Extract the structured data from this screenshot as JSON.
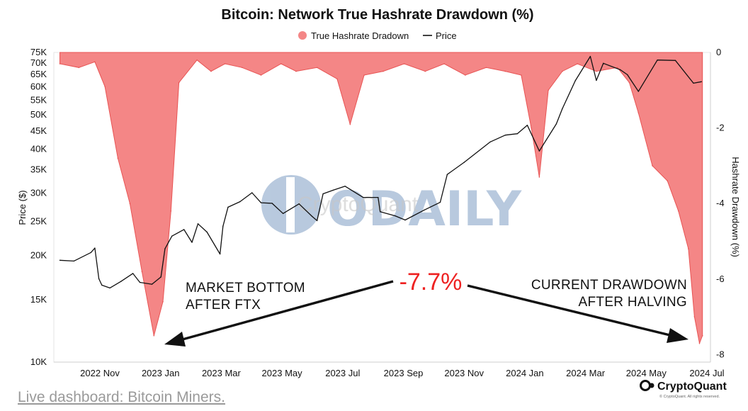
{
  "chart_data": {
    "type": "area",
    "title": "Bitcoin: Network True Hashrate Drawdown (%)",
    "legend": {
      "placement": "top-center",
      "entries": [
        "True Hashrate Dradown",
        "Price"
      ]
    },
    "colors": {
      "drawdown_fill": "#f48686",
      "drawdown_line": "#e85454",
      "price_line": "#111111",
      "callout": "#ee2222"
    },
    "x_axis": {
      "ticks": [
        "2022 Nov",
        "2023 Jan",
        "2023 Mar",
        "2023 May",
        "2023 Jul",
        "2023 Sep",
        "2023 Nov",
        "2024 Jan",
        "2024 Mar",
        "2024 May",
        "2024 Jul"
      ]
    },
    "y_left": {
      "label": "Price ($)",
      "scale": "log",
      "range": [
        10000,
        75000
      ],
      "ticks": [
        10000,
        15000,
        20000,
        25000,
        30000,
        35000,
        40000,
        45000,
        50000,
        55000,
        60000,
        65000,
        70000,
        75000
      ],
      "tick_labels": [
        "10K",
        "15K",
        "20K",
        "25K",
        "30K",
        "35K",
        "40K",
        "45K",
        "50K",
        "55K",
        "60K",
        "65K",
        "70K",
        "75K"
      ]
    },
    "y_right": {
      "label": "Hashrate Drawdown (%)",
      "range": [
        -8.2,
        0
      ],
      "ticks": [
        0,
        -2,
        -4,
        -6,
        -8
      ],
      "tick_labels": [
        "0",
        "-2",
        "-4",
        "-6",
        "-8"
      ]
    },
    "series": [
      {
        "name": "Price",
        "axis": "left",
        "points": [
          [
            "2022-10-01",
            19400
          ],
          [
            "2022-10-15",
            19300
          ],
          [
            "2022-11-01",
            20400
          ],
          [
            "2022-11-05",
            21000
          ],
          [
            "2022-11-09",
            17200
          ],
          [
            "2022-11-12",
            16500
          ],
          [
            "2022-11-20",
            16200
          ],
          [
            "2022-12-01",
            16900
          ],
          [
            "2022-12-13",
            17800
          ],
          [
            "2022-12-20",
            16800
          ],
          [
            "2023-01-01",
            16600
          ],
          [
            "2023-01-10",
            17400
          ],
          [
            "2023-01-14",
            20900
          ],
          [
            "2023-01-21",
            22700
          ],
          [
            "2023-02-02",
            23700
          ],
          [
            "2023-02-10",
            21800
          ],
          [
            "2023-02-16",
            24600
          ],
          [
            "2023-02-25",
            23300
          ],
          [
            "2023-03-10",
            20200
          ],
          [
            "2023-03-13",
            24200
          ],
          [
            "2023-03-18",
            27400
          ],
          [
            "2023-03-30",
            28400
          ],
          [
            "2023-04-11",
            30100
          ],
          [
            "2023-04-20",
            28200
          ],
          [
            "2023-05-01",
            28100
          ],
          [
            "2023-05-12",
            26300
          ],
          [
            "2023-05-28",
            28000
          ],
          [
            "2023-06-10",
            25800
          ],
          [
            "2023-06-15",
            25100
          ],
          [
            "2023-06-21",
            29900
          ],
          [
            "2023-07-01",
            30600
          ],
          [
            "2023-07-13",
            31400
          ],
          [
            "2023-07-31",
            29200
          ],
          [
            "2023-08-15",
            29200
          ],
          [
            "2023-08-17",
            26600
          ],
          [
            "2023-09-01",
            25900
          ],
          [
            "2023-09-11",
            25200
          ],
          [
            "2023-09-30",
            26900
          ],
          [
            "2023-10-16",
            28300
          ],
          [
            "2023-10-23",
            33900
          ],
          [
            "2023-11-09",
            36700
          ],
          [
            "2023-12-05",
            41900
          ],
          [
            "2023-12-20",
            43800
          ],
          [
            "2024-01-01",
            44200
          ],
          [
            "2024-01-11",
            46700
          ],
          [
            "2024-01-23",
            39500
          ],
          [
            "2024-02-09",
            47100
          ],
          [
            "2024-02-15",
            52000
          ],
          [
            "2024-02-28",
            62400
          ],
          [
            "2024-03-14",
            73100
          ],
          [
            "2024-03-20",
            62500
          ],
          [
            "2024-03-27",
            69900
          ],
          [
            "2024-04-13",
            67000
          ],
          [
            "2024-04-20",
            64900
          ],
          [
            "2024-05-01",
            58200
          ],
          [
            "2024-05-20",
            71400
          ],
          [
            "2024-06-07",
            71200
          ],
          [
            "2024-06-25",
            61400
          ],
          [
            "2024-07-03",
            62000
          ]
        ]
      },
      {
        "name": "True Hashrate Dradown",
        "axis": "right",
        "points": [
          [
            "2022-10-01",
            -0.3
          ],
          [
            "2022-10-20",
            -0.4
          ],
          [
            "2022-11-05",
            -0.25
          ],
          [
            "2022-11-15",
            -0.9
          ],
          [
            "2022-11-28",
            -2.8
          ],
          [
            "2022-12-10",
            -4.0
          ],
          [
            "2022-12-22",
            -5.8
          ],
          [
            "2023-01-03",
            -7.5
          ],
          [
            "2023-01-12",
            -6.6
          ],
          [
            "2023-01-20",
            -4.2
          ],
          [
            "2023-01-28",
            -0.8
          ],
          [
            "2023-02-15",
            -0.2
          ],
          [
            "2023-03-01",
            -0.5
          ],
          [
            "2023-03-15",
            -0.3
          ],
          [
            "2023-04-01",
            -0.4
          ],
          [
            "2023-04-20",
            -0.6
          ],
          [
            "2023-05-10",
            -0.3
          ],
          [
            "2023-05-25",
            -0.5
          ],
          [
            "2023-06-15",
            -0.4
          ],
          [
            "2023-07-05",
            -0.7
          ],
          [
            "2023-07-18",
            -1.9
          ],
          [
            "2023-08-01",
            -0.6
          ],
          [
            "2023-08-20",
            -0.5
          ],
          [
            "2023-09-10",
            -0.3
          ],
          [
            "2023-10-01",
            -0.5
          ],
          [
            "2023-10-20",
            -0.3
          ],
          [
            "2023-11-10",
            -0.6
          ],
          [
            "2023-12-01",
            -0.4
          ],
          [
            "2023-12-20",
            -0.5
          ],
          [
            "2024-01-05",
            -0.6
          ],
          [
            "2024-01-15",
            -2.0
          ],
          [
            "2024-01-23",
            -3.3
          ],
          [
            "2024-02-01",
            -1.0
          ],
          [
            "2024-02-15",
            -0.5
          ],
          [
            "2024-03-01",
            -0.3
          ],
          [
            "2024-03-20",
            -0.5
          ],
          [
            "2024-04-10",
            -0.4
          ],
          [
            "2024-04-22",
            -0.8
          ],
          [
            "2024-05-01",
            -1.6
          ],
          [
            "2024-05-15",
            -3.0
          ],
          [
            "2024-05-30",
            -3.4
          ],
          [
            "2024-06-10",
            -4.2
          ],
          [
            "2024-06-20",
            -5.2
          ],
          [
            "2024-06-26",
            -7.0
          ],
          [
            "2024-07-01",
            -7.7
          ],
          [
            "2024-07-04",
            -7.5
          ]
        ]
      }
    ],
    "annotations": [
      {
        "text": "MARKET BOTTOM",
        "line": 1
      },
      {
        "text": "AFTER FTX",
        "line": 2
      },
      {
        "text": "CURRENT DRAWDOWN",
        "line": 1
      },
      {
        "text": "AFTER HALVING",
        "line": 2
      }
    ],
    "callout": "-7.7%",
    "watermarks": [
      "ODAILY",
      "CryptoQuant"
    ]
  },
  "branding": {
    "name": "CryptoQuant",
    "sub": "© CryptoQuant. All rights reserved."
  },
  "footer_link": "Live dashboard: Bitcoin Miners."
}
